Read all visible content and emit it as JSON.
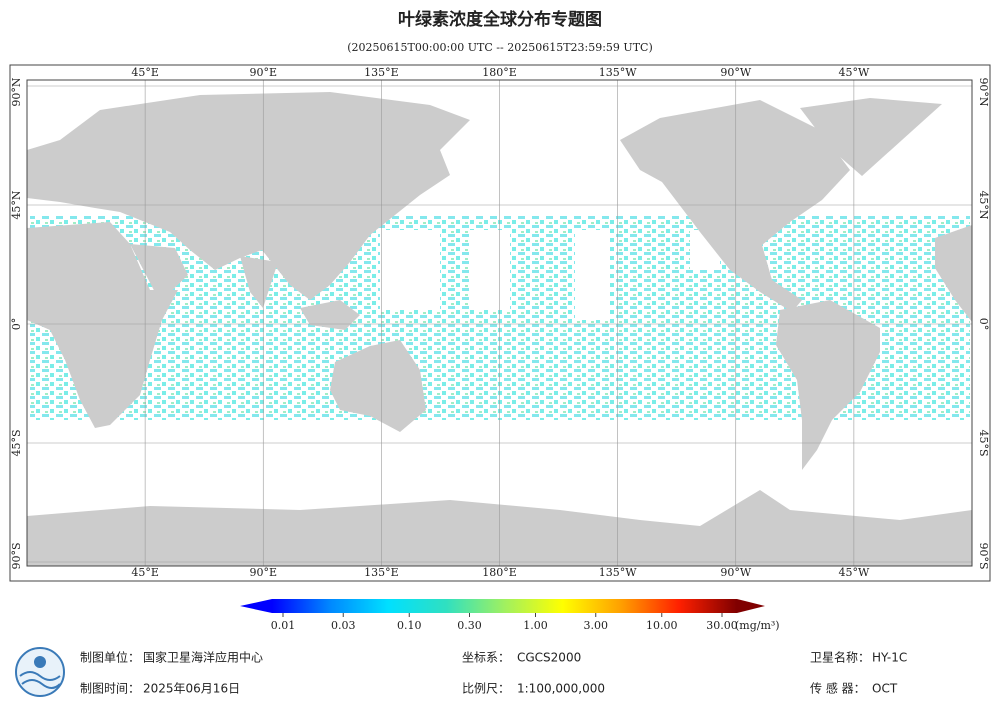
{
  "title": "叶绿素浓度全球分布专题图",
  "subtitle": "(20250615T00:00:00 UTC -- 20250615T23:59:59 UTC)",
  "map": {
    "lon_ticks": [
      {
        "value": 45,
        "label": "45°E"
      },
      {
        "value": 90,
        "label": "90°E"
      },
      {
        "value": 135,
        "label": "135°E"
      },
      {
        "value": 180,
        "label": "180°E"
      },
      {
        "value": -135,
        "label": "135°W"
      },
      {
        "value": -90,
        "label": "90°W"
      },
      {
        "value": -45,
        "label": "45°W"
      }
    ],
    "lat_ticks": [
      {
        "value": 90,
        "label": "90°N"
      },
      {
        "value": 45,
        "label": "45°N"
      },
      {
        "value": 0,
        "label": "0°"
      },
      {
        "value": -45,
        "label": "45°S"
      },
      {
        "value": -90,
        "label": "90°S"
      }
    ]
  },
  "colorbar": {
    "range": [
      0.01,
      30
    ],
    "log": true,
    "colors": [
      "#0000ff",
      "#0088ff",
      "#00e0ff",
      "#30e0c0",
      "#a0f060",
      "#ffff00",
      "#ffa000",
      "#ff2000",
      "#800000"
    ],
    "ticks": [
      0.01,
      0.03,
      {
        "value": 0.1,
        "label": "0.10"
      },
      {
        "value": 0.3,
        "label": "0.30"
      },
      {
        "value": 1,
        "label": "1.00"
      },
      {
        "value": 3,
        "label": "3.00"
      },
      {
        "value": 10,
        "label": "10.00"
      },
      {
        "value": 30,
        "label": "30.00"
      }
    ],
    "unit": "(mg/m³)"
  },
  "footer": {
    "unit": {
      "label": "制图单位：",
      "value": "国家卫星海洋应用中心"
    },
    "time": {
      "label": "制图时间：",
      "value": "2025年06月16日"
    },
    "crs": {
      "label": "坐标系：",
      "value": "CGCS2000"
    },
    "scale": {
      "label": "比例尺：",
      "value": "1:100,000,000"
    },
    "satellite": {
      "label": "卫星名称：",
      "value": "HY-1C"
    },
    "sensor": {
      "label": "传 感 器：",
      "value": "OCT"
    }
  }
}
